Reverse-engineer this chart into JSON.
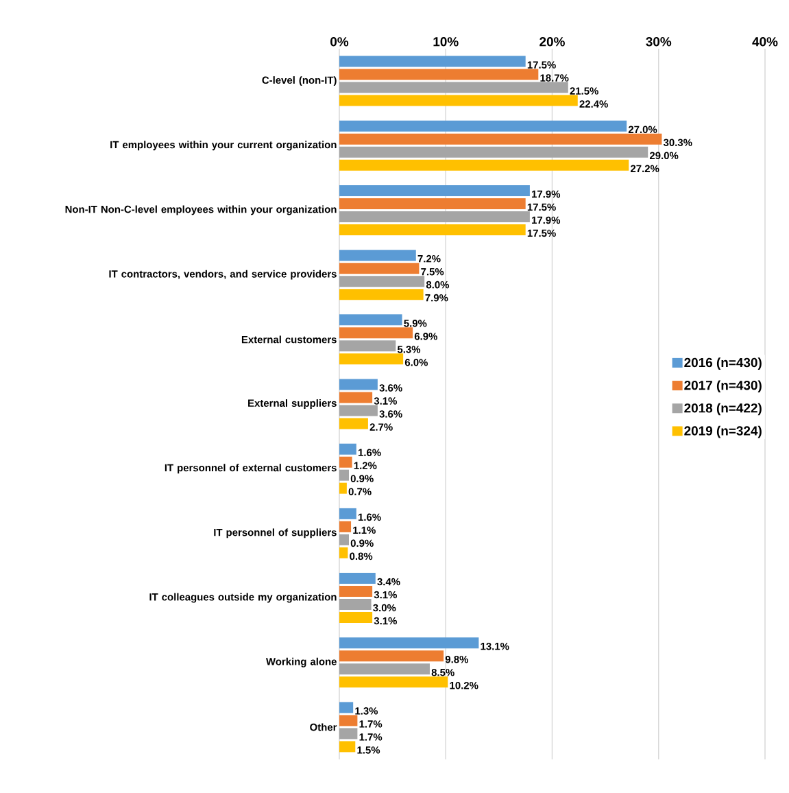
{
  "chart_data": {
    "type": "bar",
    "orientation": "horizontal",
    "categories": [
      "C-level (non-IT)",
      "IT employees within your current organization",
      "Non-IT Non-C-level employees within your organization",
      "IT contractors, vendors,  and service providers",
      "External customers",
      "External suppliers",
      "IT personnel of external customers",
      "IT personnel of suppliers",
      "IT colleagues outside my organization",
      "Working alone",
      "Other"
    ],
    "series": [
      {
        "name": "2016 (n=430)",
        "color": "#5b9bd5",
        "values": [
          17.5,
          27.0,
          17.9,
          7.2,
          5.9,
          3.6,
          1.6,
          1.6,
          3.4,
          13.1,
          1.3
        ],
        "value_labels": [
          "17.5%",
          "27.0%",
          "17.9%",
          "7.2%",
          "5.9%",
          "3.6%",
          "1.6%",
          "1.6%",
          "3.4%",
          "13.1%",
          "1.3%"
        ]
      },
      {
        "name": "2017 (n=430)",
        "color": "#ed7d31",
        "values": [
          18.7,
          30.3,
          17.5,
          7.5,
          6.9,
          3.1,
          1.2,
          1.1,
          3.1,
          9.8,
          1.7
        ],
        "value_labels": [
          "18.7%",
          "30.3%",
          "17.5%",
          "7.5%",
          "6.9%",
          "3.1%",
          "1.2%",
          "1.1%",
          "3.1%",
          "9.8%",
          "1.7%"
        ]
      },
      {
        "name": "2018 (n=422)",
        "color": "#a5a5a5",
        "values": [
          21.5,
          29.0,
          17.9,
          8.0,
          5.3,
          3.6,
          0.9,
          0.9,
          3.0,
          8.5,
          1.7
        ],
        "value_labels": [
          "21.5%",
          "29.0%",
          "17.9%",
          "8.0%",
          "5.3%",
          "3.6%",
          "0.9%",
          "0.9%",
          "3.0%",
          "8.5%",
          "1.7%"
        ]
      },
      {
        "name": "2019 (n=324)",
        "color": "#ffc000",
        "values": [
          22.4,
          27.2,
          17.5,
          7.9,
          6.0,
          2.7,
          0.7,
          0.8,
          3.1,
          10.2,
          1.5
        ],
        "value_labels": [
          "22.4%",
          "27.2%",
          "17.5%",
          "7.9%",
          "6.0%",
          "2.7%",
          "0.7%",
          "0.8%",
          "3.1%",
          "10.2%",
          "1.5%"
        ]
      }
    ],
    "xlim": [
      0,
      40
    ],
    "xticks": [
      {
        "value": 0,
        "label": "0%"
      },
      {
        "value": 10,
        "label": "10%"
      },
      {
        "value": 20,
        "label": "20%"
      },
      {
        "value": 30,
        "label": "30%"
      },
      {
        "value": 40,
        "label": "40%"
      }
    ],
    "grid": "x",
    "legend": "right"
  }
}
